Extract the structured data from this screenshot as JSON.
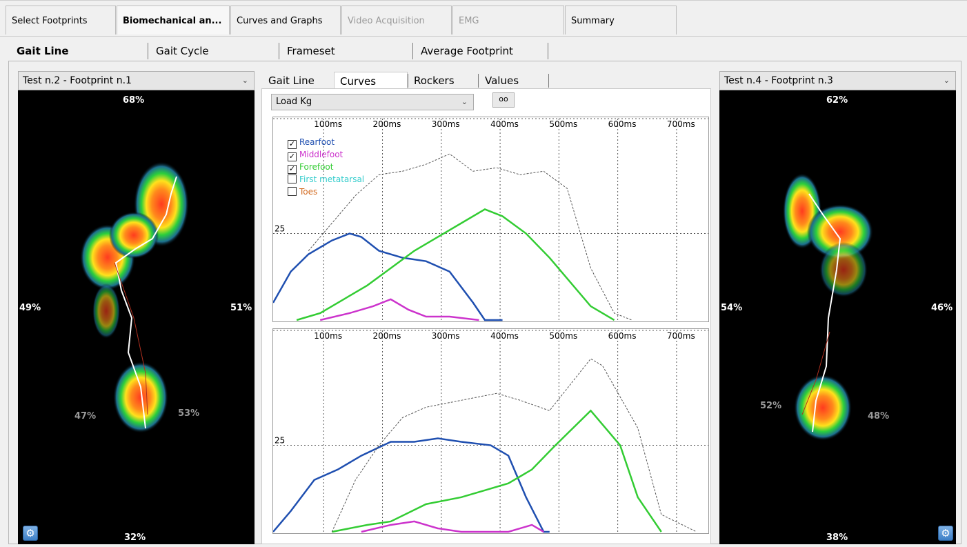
{
  "top_tabs": [
    {
      "label": "Select Footprints",
      "state": "normal"
    },
    {
      "label": "Biomechanical an...",
      "state": "active"
    },
    {
      "label": "Curves and Graphs",
      "state": "normal"
    },
    {
      "label": "Video Acquisition",
      "state": "disabled"
    },
    {
      "label": "EMG",
      "state": "disabled"
    },
    {
      "label": "Summary",
      "state": "normal"
    }
  ],
  "sub_tabs": [
    "Gait Line",
    "Gait Cycle",
    "Frameset",
    "Average Footprint"
  ],
  "left_panel": {
    "select": "Test n.2 - Footprint n.1",
    "pct_top": "68%",
    "pct_bottom": "32%",
    "pct_left": "49%",
    "pct_right": "51%",
    "heel_left": "47%",
    "heel_right": "53%",
    "settings_icon": "settings-gear-icon"
  },
  "right_panel": {
    "select": "Test n.4 - Footprint n.3",
    "pct_top": "62%",
    "pct_bottom": "38%",
    "pct_left": "54%",
    "pct_right": "46%",
    "heel_left": "52%",
    "heel_right": "48%",
    "settings_icon": "settings-gear-icon"
  },
  "center": {
    "tabs": [
      "Gait Line",
      "Curves",
      "Rockers",
      "Values"
    ],
    "active_tab": "Curves",
    "measure_select": "Load Kg",
    "small_button": "oo",
    "legend": [
      {
        "label": "Rearfoot",
        "checked": true,
        "color": "#1f4fb0"
      },
      {
        "label": "Middlefoot",
        "checked": true,
        "color": "#cc33cc"
      },
      {
        "label": "Forefoot",
        "checked": true,
        "color": "#33cc33"
      },
      {
        "label": "First metatarsal",
        "checked": false,
        "color": "#33cccc"
      },
      {
        "label": "Toes",
        "checked": false,
        "color": "#d2691e"
      }
    ]
  },
  "colors": {
    "rearfoot": "#1f4fb0",
    "middlefoot": "#cc33cc",
    "forefoot": "#33cc33",
    "total": "#555555"
  },
  "chart_data": [
    {
      "type": "line",
      "x_ticks": [
        "100ms",
        "200ms",
        "300ms",
        "400ms",
        "500ms",
        "600ms",
        "700ms"
      ],
      "y_tick": "25",
      "xlim": [
        0,
        740
      ],
      "ylim": [
        0,
        55
      ],
      "series": [
        {
          "name": "Rearfoot",
          "x": [
            0,
            30,
            60,
            100,
            130,
            150,
            180,
            220,
            260,
            300,
            340,
            360,
            390
          ],
          "y": [
            5,
            14,
            19,
            23,
            25,
            24,
            20,
            18,
            17,
            14,
            5,
            0,
            0
          ]
        },
        {
          "name": "Middlefoot",
          "x": [
            80,
            130,
            170,
            200,
            230,
            260,
            300,
            350
          ],
          "y": [
            0,
            2,
            4,
            6,
            3,
            1,
            1,
            0
          ]
        },
        {
          "name": "Forefoot",
          "x": [
            40,
            80,
            120,
            160,
            200,
            240,
            280,
            320,
            360,
            390,
            430,
            470,
            500,
            540,
            580
          ],
          "y": [
            0,
            2,
            6,
            10,
            15,
            20,
            24,
            28,
            32,
            30,
            25,
            18,
            12,
            4,
            0
          ]
        },
        {
          "name": "",
          "x": [
            60,
            100,
            140,
            180,
            220,
            260,
            300,
            340,
            380,
            420,
            460,
            500,
            540,
            580,
            610
          ],
          "y": [
            20,
            28,
            36,
            42,
            43,
            45,
            48,
            43,
            44,
            42,
            43,
            38,
            15,
            2,
            0
          ]
        }
      ]
    },
    {
      "type": "line",
      "x_ticks": [
        "100ms",
        "200ms",
        "300ms",
        "400ms",
        "500ms",
        "600ms",
        "700ms"
      ],
      "y_tick": "25",
      "xlim": [
        0,
        740
      ],
      "ylim": [
        0,
        55
      ],
      "series": [
        {
          "name": "Rearfoot",
          "x": [
            0,
            30,
            70,
            110,
            150,
            200,
            240,
            280,
            320,
            370,
            400,
            430,
            460,
            470
          ],
          "y": [
            0,
            6,
            15,
            18,
            22,
            26,
            26,
            27,
            26,
            25,
            22,
            10,
            0,
            0
          ]
        },
        {
          "name": "Middlefoot",
          "x": [
            150,
            200,
            240,
            280,
            320,
            400,
            440,
            460
          ],
          "y": [
            0,
            2,
            3,
            1,
            0,
            0,
            2,
            0
          ]
        },
        {
          "name": "Forefoot",
          "x": [
            100,
            160,
            200,
            260,
            320,
            360,
            400,
            440,
            480,
            540,
            590,
            620,
            660
          ],
          "y": [
            0,
            2,
            3,
            8,
            10,
            12,
            14,
            18,
            25,
            35,
            25,
            10,
            0
          ]
        },
        {
          "name": "",
          "x": [
            100,
            140,
            180,
            220,
            260,
            320,
            380,
            420,
            470,
            540,
            560,
            620,
            660,
            720
          ],
          "y": [
            0,
            15,
            25,
            33,
            36,
            38,
            40,
            38,
            35,
            50,
            48,
            30,
            5,
            0
          ]
        }
      ]
    }
  ]
}
